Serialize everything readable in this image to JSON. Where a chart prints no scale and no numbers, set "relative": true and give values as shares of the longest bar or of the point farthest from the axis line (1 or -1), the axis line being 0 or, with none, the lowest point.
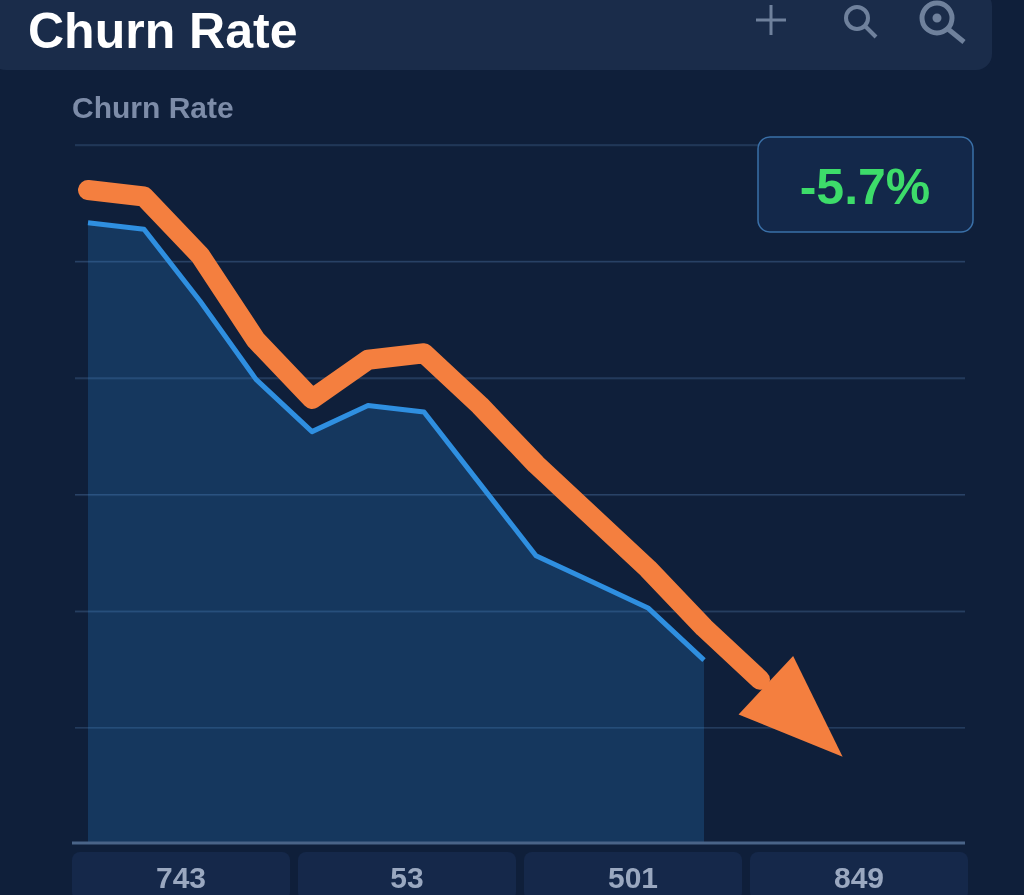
{
  "chart_data": {
    "type": "area",
    "title": "Churn Rate",
    "subtitle": "Churn Rate",
    "relative": true,
    "categories": [
      null,
      null,
      null,
      null,
      null,
      null,
      null,
      null,
      null,
      null,
      null,
      null,
      null
    ],
    "series": [
      {
        "color": "#2f8fe0",
        "values": [
          0.95,
          0.94,
          0.83,
          0.71,
          0.63,
          0.67,
          0.66,
          0.55,
          0.44,
          0.4,
          0.36,
          0.28,
          null
        ]
      },
      {
        "type": "line",
        "color": "#f47f3f",
        "values": [
          1.0,
          0.99,
          0.9,
          0.77,
          0.68,
          0.74,
          0.75,
          0.67,
          0.58,
          0.5,
          0.42,
          0.33,
          0.25
        ]
      }
    ],
    "annotations": [
      "-5.7%",
      "743",
      "53",
      "501",
      "849"
    ]
  }
}
